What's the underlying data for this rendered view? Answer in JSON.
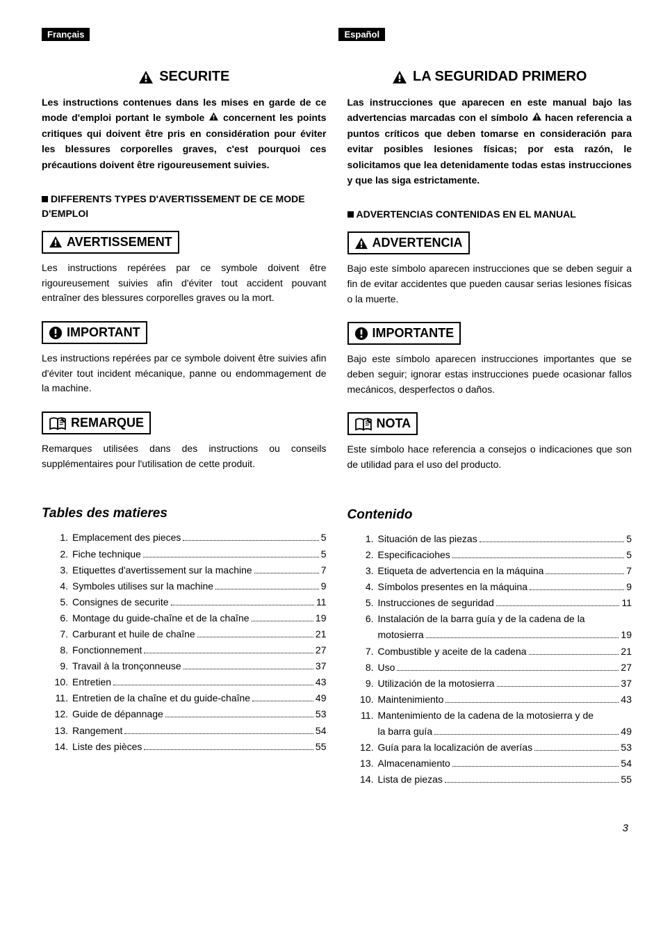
{
  "header": {
    "lang_left": "Français",
    "lang_right": "Español"
  },
  "left": {
    "title": "SECURITE",
    "intro_a": "Les instructions contenues dans les mises en garde de ce mode d'emploi portant le symbole ",
    "intro_b": " concernent les points critiques qui doivent être pris en considération pour éviter les blessures corporelles graves, c'est pourquoi ces précautions doivent être rigoureusement suivies.",
    "sub1": "DIFFERENTS TYPES D'AVERTISSEMENT DE CE MODE D'EMPLOI",
    "box1": "AVERTISSEMENT",
    "text1": "Les instructions repérées par ce symbole doivent être rigoureusement suivies afin d'éviter tout accident pouvant entraîner des blessures corporelles graves ou la mort.",
    "box2": "IMPORTANT",
    "text2": "Les instructions repérées par ce symbole doivent être suivies afin d'éviter tout incident mécanique, panne ou endommagement de la machine.",
    "box3": "REMARQUE",
    "text3": "Remarques utilisées dans des instructions ou conseils supplémentaires pour l'utilisation de cette produit.",
    "toc_title": "Tables des matieres",
    "toc": [
      {
        "n": "1.",
        "t": "Emplacement des pieces",
        "p": "5"
      },
      {
        "n": "2.",
        "t": "Fiche technique",
        "p": "5"
      },
      {
        "n": "3.",
        "t": "Etiquettes d'avertissement sur la machine",
        "p": "7"
      },
      {
        "n": "4.",
        "t": "Symboles utilises sur la machine",
        "p": "9"
      },
      {
        "n": "5.",
        "t": "Consignes de securite",
        "p": "11"
      },
      {
        "n": "6.",
        "t": "Montage du guide-chaîne et de la chaîne",
        "p": "19"
      },
      {
        "n": "7.",
        "t": "Carburant et huile de chaîne",
        "p": "21"
      },
      {
        "n": "8.",
        "t": "Fonctionnement",
        "p": "27"
      },
      {
        "n": "9.",
        "t": "Travail à la tronçonneuse",
        "p": "37"
      },
      {
        "n": "10.",
        "t": "Entretien",
        "p": "43"
      },
      {
        "n": "11.",
        "t": "Entretien de la chaîne et du guide-chaîne",
        "p": "49"
      },
      {
        "n": "12.",
        "t": "Guide de dépannage",
        "p": "53"
      },
      {
        "n": "13.",
        "t": "Rangement",
        "p": "54"
      },
      {
        "n": "14.",
        "t": "Liste des pièces",
        "p": "55"
      }
    ]
  },
  "right": {
    "title": "LA SEGURIDAD PRIMERO",
    "intro_a": "Las instrucciones que aparecen en este manual bajo las advertencias marcadas con el símbolo ",
    "intro_b": " hacen referencia a puntos críticos que deben tomarse en consideración para evitar posibles lesiones físicas; por esta razón, le solicitamos que lea detenidamente todas estas instrucciones y que las siga estrictamente.",
    "sub1": "ADVERTENCIAS CONTENIDAS EN EL MANUAL",
    "box1": "ADVERTENCIA",
    "text1": "Bajo este símbolo aparecen instrucciones que se deben seguir a fin de evitar accidentes que pueden causar serias lesiones físicas o la muerte.",
    "box2": "IMPORTANTE",
    "text2": "Bajo este símbolo aparecen instrucciones importantes que se deben seguir; ignorar estas instrucciones puede ocasionar fallos mecánicos, desperfectos o daños.",
    "box3": "NOTA",
    "text3": "Este símbolo hace referencia a consejos o indicaciones que son de utilidad para el uso del producto.",
    "toc_title": "Contenido",
    "toc": [
      {
        "n": "1.",
        "t": "Situación de las piezas",
        "p": "5"
      },
      {
        "n": "2.",
        "t": "Especificaciohes",
        "p": "5"
      },
      {
        "n": "3.",
        "t": "Etiqueta de advertencia en la máquina",
        "p": "7"
      },
      {
        "n": "4.",
        "t": "Símbolos presentes en la máquina",
        "p": "9"
      },
      {
        "n": "5.",
        "t": "Instrucciones de seguridad",
        "p": "11"
      },
      {
        "n": "6.",
        "t": "Instalación de la barra guía y de la cadena de la",
        "cont": "motosierra",
        "p": "19"
      },
      {
        "n": "7.",
        "t": "Combustible y aceite de la cadena",
        "p": "21"
      },
      {
        "n": "8.",
        "t": "Uso",
        "p": "27"
      },
      {
        "n": "9.",
        "t": "Utilización de la motosierra",
        "p": "37"
      },
      {
        "n": "10.",
        "t": "Maintenimiento",
        "p": "43"
      },
      {
        "n": "11.",
        "t": "Mantenimiento de la cadena de la motosierra y de",
        "cont": "la barra guía",
        "p": "49"
      },
      {
        "n": "12.",
        "t": "Guía para la localización de averías",
        "p": "53"
      },
      {
        "n": "13.",
        "t": "Almacenamiento",
        "p": "54"
      },
      {
        "n": "14.",
        "t": "Lista de piezas",
        "p": "55"
      }
    ]
  },
  "page_number": "3"
}
